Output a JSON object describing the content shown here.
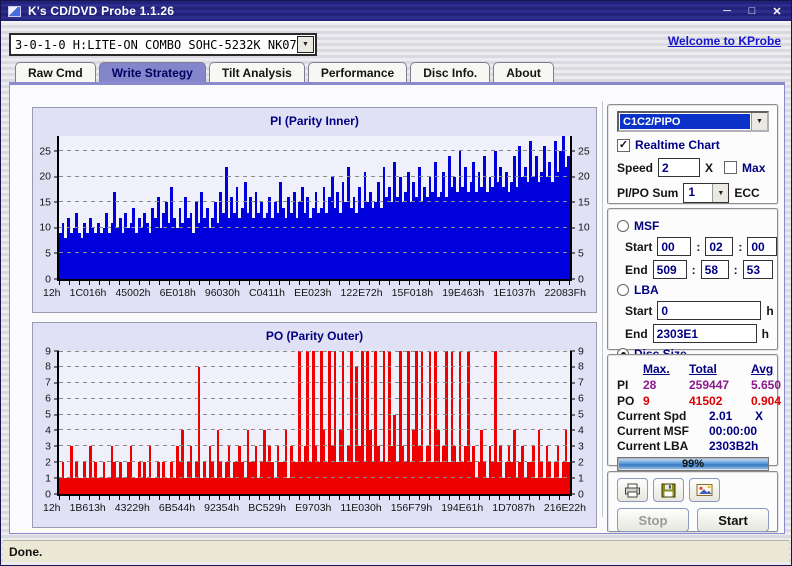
{
  "window": {
    "title": "K's CD/DVD Probe 1.1.26",
    "min": "─",
    "max": "□",
    "close": "✕"
  },
  "toolbar": {
    "drive": "3-0-1-0 H:LITE-ON COMBO SOHC-5232K NK07",
    "welcome_link": "Welcome to KProbe"
  },
  "tabs": [
    {
      "label": "Raw Cmd",
      "active": false
    },
    {
      "label": "Write Strategy",
      "active": true
    },
    {
      "label": "Tilt Analysis",
      "active": false
    },
    {
      "label": "Performance",
      "active": false
    },
    {
      "label": "Disc Info.",
      "active": false
    },
    {
      "label": "About",
      "active": false
    }
  ],
  "chart_data": [
    {
      "type": "bar",
      "title": "PI (Parity Inner)",
      "color": "#0000dd",
      "ylim": [
        0,
        28
      ],
      "yticks": [
        0,
        5,
        10,
        15,
        20,
        25
      ],
      "grid": "dashed",
      "legend": "none",
      "xlabels": [
        "12h",
        "1C016h",
        "45002h",
        "6E018h",
        "96030h",
        "C0411h",
        "EE023h",
        "122E72h",
        "15F018h",
        "19E463h",
        "1E1037h",
        "22083Fh"
      ],
      "values": [
        9,
        11,
        8,
        12,
        9,
        10,
        13,
        9,
        8,
        11,
        9,
        12,
        10,
        9,
        11,
        9,
        10,
        13,
        9,
        11,
        17,
        10,
        12,
        9,
        13,
        10,
        11,
        14,
        9,
        12,
        10,
        13,
        11,
        9,
        14,
        12,
        16,
        10,
        13,
        15,
        11,
        18,
        12,
        10,
        14,
        11,
        16,
        12,
        13,
        9,
        15,
        11,
        17,
        12,
        14,
        10,
        12,
        15,
        11,
        17,
        13,
        22,
        12,
        16,
        13,
        18,
        12,
        14,
        19,
        13,
        16,
        12,
        17,
        13,
        15,
        12,
        13,
        16,
        12,
        15,
        13,
        19,
        14,
        12,
        16,
        13,
        17,
        12,
        15,
        18,
        13,
        16,
        12,
        14,
        17,
        13,
        14,
        18,
        13,
        16,
        20,
        14,
        17,
        13,
        19,
        15,
        22,
        14,
        16,
        13,
        18,
        14,
        21,
        15,
        17,
        14,
        15,
        19,
        14,
        22,
        16,
        18,
        15,
        23,
        16,
        20,
        15,
        17,
        21,
        15,
        19,
        16,
        22,
        15,
        18,
        16,
        20,
        17,
        23,
        16,
        17,
        21,
        16,
        24,
        18,
        20,
        17,
        25,
        18,
        22,
        17,
        19,
        23,
        17,
        21,
        18,
        24,
        17,
        20,
        18,
        25,
        19,
        22,
        18,
        21,
        17,
        19,
        24,
        18,
        26,
        20,
        22,
        19,
        27,
        20,
        24,
        19,
        21,
        26,
        20,
        23,
        19,
        27,
        21,
        25,
        28,
        22,
        24
      ]
    },
    {
      "type": "bar",
      "title": "PO (Parity Outer)",
      "color": "#ee0000",
      "ylim": [
        0,
        9
      ],
      "yticks": [
        0,
        1,
        2,
        3,
        4,
        5,
        6,
        7,
        8,
        9
      ],
      "grid": "dashed",
      "legend": "none",
      "xlabels": [
        "12h",
        "1B613h",
        "43229h",
        "6B544h",
        "92354h",
        "BC529h",
        "E9703h",
        "11E030h",
        "156F79h",
        "194E61h",
        "1D7087h",
        "216E22h"
      ],
      "values": [
        1,
        2,
        1,
        1,
        3,
        1,
        2,
        1,
        1,
        2,
        1,
        3,
        1,
        2,
        1,
        1,
        2,
        1,
        1,
        3,
        2,
        1,
        2,
        1,
        1,
        2,
        3,
        1,
        1,
        2,
        1,
        2,
        1,
        3,
        1,
        1,
        2,
        1,
        2,
        1,
        1,
        2,
        1,
        3,
        2,
        4,
        1,
        2,
        3,
        1,
        2,
        8,
        1,
        2,
        1,
        3,
        2,
        1,
        4,
        2,
        1,
        2,
        3,
        1,
        2,
        2,
        3,
        2,
        1,
        4,
        2,
        2,
        3,
        1,
        2,
        4,
        2,
        3,
        2,
        1,
        3,
        2,
        2,
        4,
        1,
        3,
        2,
        2,
        9,
        2,
        3,
        9,
        2,
        9,
        3,
        2,
        9,
        4,
        2,
        9,
        3,
        9,
        2,
        4,
        9,
        2,
        3,
        9,
        2,
        8,
        3,
        9,
        2,
        9,
        4,
        2,
        9,
        3,
        2,
        9,
        2,
        9,
        3,
        5,
        2,
        9,
        3,
        2,
        9,
        2,
        4,
        9,
        3,
        9,
        2,
        3,
        9,
        2,
        9,
        4,
        2,
        3,
        9,
        2,
        9,
        3,
        2,
        9,
        2,
        3,
        9,
        2,
        3,
        1,
        2,
        4,
        2,
        1,
        3,
        2,
        9,
        2,
        3,
        1,
        2,
        3,
        2,
        4,
        1,
        2,
        3,
        1,
        2,
        2,
        3,
        1,
        4,
        2,
        1,
        3,
        2,
        1,
        2,
        3,
        1,
        2,
        4,
        2
      ]
    }
  ],
  "controls": {
    "mode_combo": "C1C2/PIPO",
    "realtime_chart": {
      "label": "Realtime Chart",
      "checked": true
    },
    "speed": {
      "label": "Speed",
      "value": "2",
      "unit": "X"
    },
    "max": {
      "label": "Max",
      "checked": false
    },
    "pipo_sum": {
      "label": "PI/PO Sum",
      "value": "1",
      "unit": "ECC"
    },
    "msf": {
      "label": "MSF",
      "selected": false,
      "start_label": "Start",
      "end_label": "End",
      "sep": ":",
      "start": [
        "00",
        "02",
        "00"
      ],
      "end": [
        "509",
        "58",
        "53"
      ]
    },
    "lba": {
      "label": "LBA",
      "selected": false,
      "start_label": "Start",
      "end_label": "End",
      "start": "0",
      "end": "2303E1",
      "unit": "h"
    },
    "disc_size": {
      "label": "Disc Size",
      "selected": true
    }
  },
  "stats": {
    "headers": {
      "max": "Max.",
      "total": "Total",
      "avg": "Avg"
    },
    "pi": {
      "label": "PI",
      "max": "28",
      "total": "259447",
      "avg": "5.650"
    },
    "po": {
      "label": "PO",
      "max": "9",
      "total": "41502",
      "avg": "0.904"
    },
    "current_spd": {
      "label": "Current Spd",
      "value": "2.01",
      "unit": "X"
    },
    "current_msf": {
      "label": "Current MSF",
      "value": "00:00:00",
      "unit": ""
    },
    "current_lba": {
      "label": "Current LBA",
      "value": "2303B2h",
      "unit": ""
    },
    "progress": {
      "percent": 99,
      "label": "99%"
    }
  },
  "actions": {
    "stop": "Stop",
    "start": "Start"
  },
  "statusbar": {
    "text": "Done."
  }
}
